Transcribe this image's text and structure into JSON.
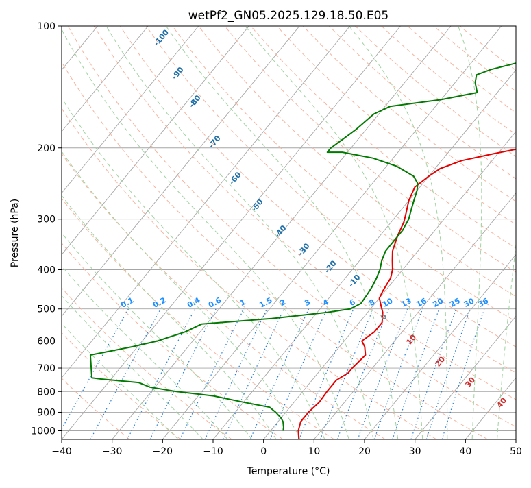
{
  "chart_data": {
    "type": "line",
    "subtype": "skew-t log-p",
    "title": "wetPf2_GN05.2025.129.18.50.E05",
    "xlabel": "Temperature (°C)",
    "ylabel": "Pressure (hPa)",
    "xlim": [
      -40,
      50
    ],
    "ylim": [
      1050,
      100
    ],
    "y_scale": "log",
    "grid": true,
    "x_ticks": [
      -40,
      -30,
      -20,
      -10,
      0,
      10,
      20,
      30,
      40,
      50
    ],
    "y_ticks": [
      1000,
      900,
      800,
      700,
      600,
      500,
      400,
      300,
      200,
      100
    ],
    "colors": {
      "temperature": "#e50000",
      "dewpoint": "#007a00",
      "isotherm": "#a6a6a6",
      "dry_adiabat": "#f6b29d",
      "moist_adiabat": "#9fd29f",
      "mixing_ratio": "#2a7fd4",
      "mr_label": "#1e90ff",
      "dry_label": "#1f6fa8",
      "moist_label": "#d03030",
      "zero_label": "#808080"
    },
    "series": [
      {
        "name": "Temperature",
        "points": [
          [
            7,
            1050
          ],
          [
            5.5,
            1000
          ],
          [
            4.5,
            950
          ],
          [
            4.5,
            900
          ],
          [
            5,
            850
          ],
          [
            4.8,
            800
          ],
          [
            4.8,
            750
          ],
          [
            6,
            720
          ],
          [
            6,
            700
          ],
          [
            6.5,
            650
          ],
          [
            5,
            620
          ],
          [
            3.5,
            600
          ],
          [
            4.5,
            570
          ],
          [
            4.5,
            540
          ],
          [
            3,
            510
          ],
          [
            1.5,
            490
          ],
          [
            0,
            470
          ],
          [
            -0.5,
            450
          ],
          [
            -1,
            420
          ],
          [
            -2,
            400
          ],
          [
            -3.5,
            380
          ],
          [
            -5,
            360
          ],
          [
            -6.5,
            330
          ],
          [
            -7.5,
            305
          ],
          [
            -8.5,
            290
          ],
          [
            -10,
            270
          ],
          [
            -11,
            250
          ],
          [
            -10,
            235
          ],
          [
            -9,
            225
          ],
          [
            -6,
            215
          ],
          [
            -1,
            207
          ],
          [
            4,
            200
          ],
          [
            8,
            195
          ],
          [
            12,
            185
          ],
          [
            17,
            170
          ],
          [
            20,
            160
          ],
          [
            24,
            150
          ],
          [
            29,
            140
          ],
          [
            33,
            125
          ],
          [
            35,
            112
          ],
          [
            36,
            100
          ]
        ]
      },
      {
        "name": "Dewpoint",
        "points": [
          [
            2.5,
            1000
          ],
          [
            2,
            980
          ],
          [
            1,
            950
          ],
          [
            0,
            930
          ],
          [
            -2,
            900
          ],
          [
            -4,
            875
          ],
          [
            -10,
            850
          ],
          [
            -17,
            820
          ],
          [
            -25,
            800
          ],
          [
            -31,
            780
          ],
          [
            -34,
            760
          ],
          [
            -42,
            745
          ],
          [
            -44,
            740
          ],
          [
            -48,
            650
          ],
          [
            -41,
            620
          ],
          [
            -37,
            600
          ],
          [
            -33,
            570
          ],
          [
            -31,
            545
          ],
          [
            -18,
            528
          ],
          [
            -8,
            510
          ],
          [
            -4,
            500
          ],
          [
            -2.8,
            485
          ],
          [
            -3,
            460
          ],
          [
            -3.3,
            440
          ],
          [
            -3.8,
            420
          ],
          [
            -4.5,
            400
          ],
          [
            -5.6,
            380
          ],
          [
            -6.4,
            360
          ],
          [
            -6.4,
            340
          ],
          [
            -6.4,
            320
          ],
          [
            -7,
            300
          ],
          [
            -8,
            285
          ],
          [
            -9,
            270
          ],
          [
            -10,
            255
          ],
          [
            -11,
            245
          ],
          [
            -13,
            235
          ],
          [
            -18,
            222
          ],
          [
            -24,
            212
          ],
          [
            -31,
            205
          ],
          [
            -34,
            205
          ],
          [
            -34,
            200
          ],
          [
            -33,
            190
          ],
          [
            -32,
            180
          ],
          [
            -31,
            165
          ],
          [
            -29,
            158
          ],
          [
            -20,
            152
          ],
          [
            -14,
            146
          ],
          [
            -16,
            138
          ],
          [
            -17,
            132
          ],
          [
            -15,
            128
          ],
          [
            -8,
            120
          ],
          [
            -4,
            113
          ],
          [
            0,
            105
          ],
          [
            2,
            100
          ]
        ]
      }
    ],
    "mixing_ratio_labels": [
      "0.1",
      "0.2",
      "0.4",
      "0.6",
      "1",
      "1.5",
      "2",
      "3",
      "4",
      "6",
      "8",
      "10",
      "13",
      "16",
      "20",
      "25",
      "30",
      "36"
    ],
    "dry_adiabat_labels": [
      "-100",
      "-90",
      "-80",
      "-70",
      "-60",
      "-50",
      "-40",
      "-30",
      "-20",
      "-10"
    ],
    "moist_adiabat_labels": [
      "0",
      "10",
      "20",
      "30",
      "40"
    ]
  }
}
